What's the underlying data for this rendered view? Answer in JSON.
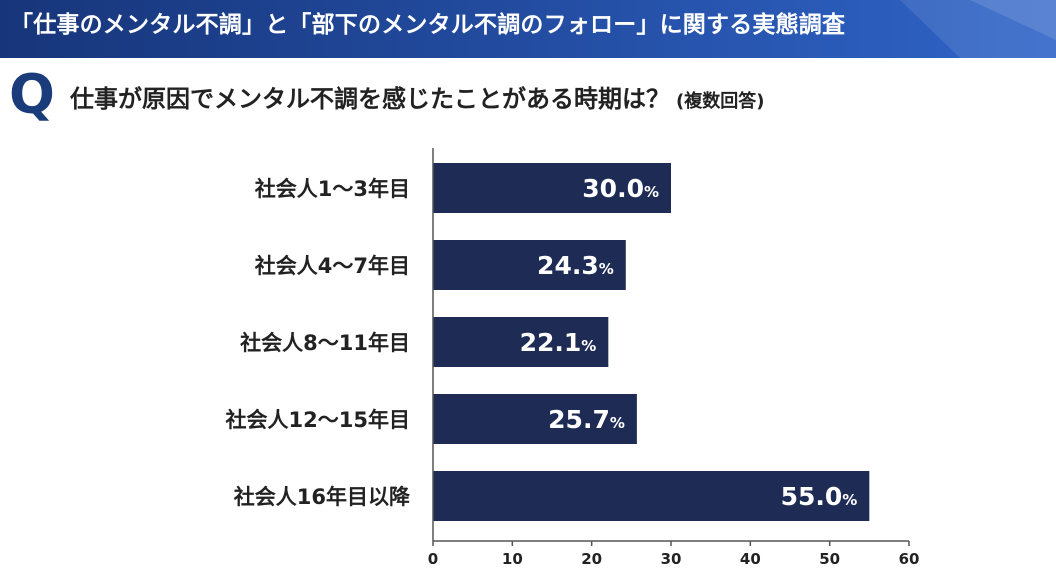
{
  "header": {
    "title": "「仕事のメンタル不調」と「部下のメンタル不調のフォロー」に関する実態調査"
  },
  "question": {
    "mark": "Q",
    "text": "仕事が原因でメンタル不調を感じたことがある時期は？",
    "note": "(複数回答)"
  },
  "colors": {
    "banner_dark": "#17357a",
    "banner_light": "#2f64c8",
    "accent": "#1b3c7a",
    "bar": "#1d2b55",
    "axis": "#555555"
  },
  "chart_data": {
    "type": "bar",
    "orientation": "horizontal",
    "categories": [
      "社会人1〜3年目",
      "社会人4〜7年目",
      "社会人8〜11年目",
      "社会人12〜15年目",
      "社会人16年目以降"
    ],
    "values": [
      30.0,
      24.3,
      22.1,
      25.7,
      55.0
    ],
    "value_labels": [
      "30.0",
      "24.3",
      "22.1",
      "25.7",
      "55.0"
    ],
    "unit": "%",
    "xlim": [
      0,
      60
    ],
    "xticks": [
      "0",
      "10",
      "20",
      "30",
      "40",
      "50",
      "60"
    ],
    "grid": false
  }
}
